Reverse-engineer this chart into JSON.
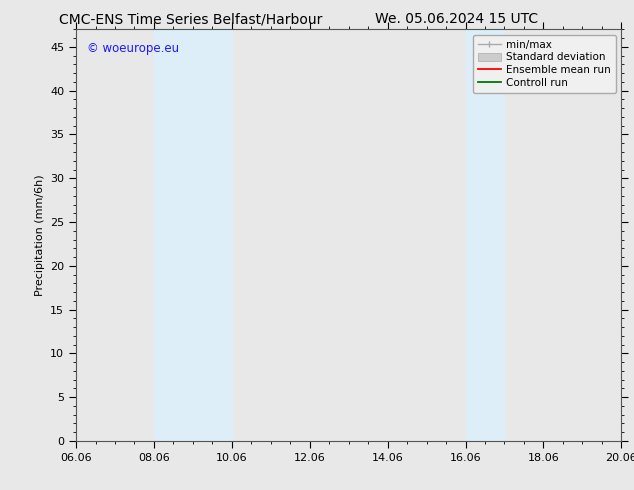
{
  "title_left": "CMC-ENS Time Series Belfast/Harbour",
  "title_right": "We. 05.06.2024 15 UTC",
  "ylabel": "Precipitation (mm/6h)",
  "xtick_labels": [
    "06.06",
    "08.06",
    "10.06",
    "12.06",
    "14.06",
    "16.06",
    "18.06",
    "20.06"
  ],
  "xtick_positions": [
    0,
    2,
    4,
    6,
    8,
    10,
    12,
    14
  ],
  "xlim": [
    0,
    14
  ],
  "ylim": [
    0,
    47
  ],
  "ytick_labels": [
    "0",
    "5",
    "10",
    "15",
    "20",
    "25",
    "30",
    "35",
    "40",
    "45"
  ],
  "ytick_positions": [
    0,
    5,
    10,
    15,
    20,
    25,
    30,
    35,
    40,
    45
  ],
  "shaded_regions": [
    {
      "x_start": 2,
      "x_end": 4,
      "color": "#ddeef8"
    },
    {
      "x_start": 10,
      "x_end": 11,
      "color": "#ddeef8"
    }
  ],
  "watermark_text": "© woeurope.eu",
  "watermark_color": "#1a1aff",
  "bg_color": "#e8e8e8",
  "plot_bg_color": "#e8e8e8",
  "spine_color": "#555555",
  "title_fontsize": 10,
  "axis_fontsize": 8,
  "tick_fontsize": 8,
  "legend_fontsize": 7.5
}
